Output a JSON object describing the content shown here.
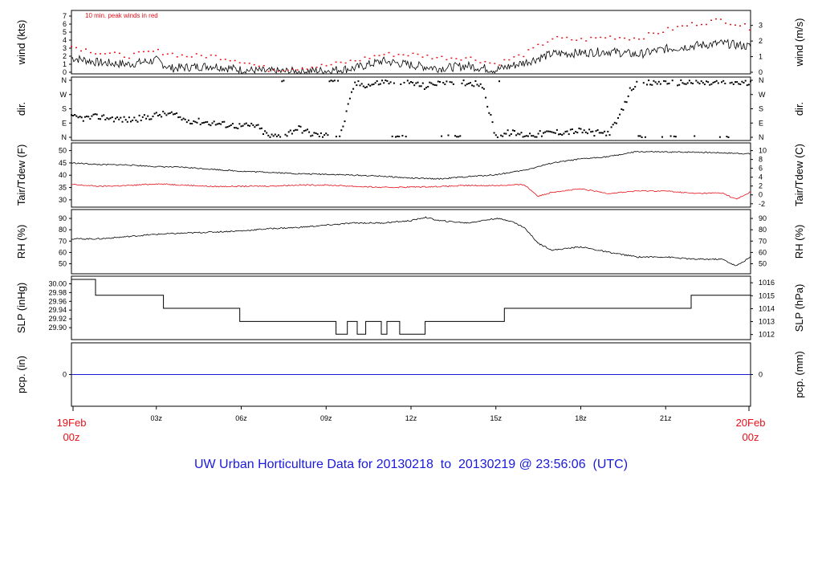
{
  "title": "UW Urban Horticulture Data for 20130218  to  20130219 @ 23:56:06  (UTC)",
  "colors": {
    "primary": "#000000",
    "red": "#e8101a",
    "blue": "#1a1adc"
  },
  "chart_data": {
    "type": "line",
    "x_axis": {
      "unit": "hour",
      "range": [
        0,
        24
      ],
      "ticks": [
        {
          "hour": 3,
          "label": "03z"
        },
        {
          "hour": 6,
          "label": "06z"
        },
        {
          "hour": 9,
          "label": "09z"
        },
        {
          "hour": 12,
          "label": "12z"
        },
        {
          "hour": 15,
          "label": "15z"
        },
        {
          "hour": 18,
          "label": "18z"
        },
        {
          "hour": 21,
          "label": "21z"
        }
      ],
      "start_label": [
        "19Feb",
        "00z"
      ],
      "end_label": [
        "20Feb",
        "00z"
      ]
    },
    "panels": [
      {
        "id": "wind",
        "left_label": "wind (kts)",
        "right_label": "wind (m/s)",
        "ylim": [
          0,
          7.5
        ],
        "left_ticks": [
          0,
          1,
          2,
          3,
          4,
          5,
          6,
          7
        ],
        "right_ticks": [
          {
            "v": 0,
            "label": "0"
          },
          {
            "v": 1.944,
            "label": "1"
          },
          {
            "v": 3.888,
            "label": "2"
          },
          {
            "v": 5.832,
            "label": "3"
          }
        ],
        "annotation": "10 min. peak winds in red",
        "series": [
          {
            "color": "#000000",
            "style": "line",
            "hours": [
              0,
              1,
              2,
              3,
              3.5,
              4,
              5,
              6,
              7,
              8,
              9,
              10,
              11,
              12,
              13,
              14,
              15,
              16,
              17,
              18,
              19,
              20,
              21,
              22,
              23,
              24
            ],
            "values": [
              1.8,
              1.2,
              1.0,
              1.5,
              0.5,
              0.6,
              0.8,
              0.3,
              0.1,
              0.1,
              0.2,
              0.5,
              1.4,
              0.9,
              0.5,
              0.8,
              0.3,
              1.2,
              2.3,
              2.4,
              2.6,
              2.2,
              2.9,
              3.3,
              3.6,
              3.2
            ]
          },
          {
            "color": "#e8101a",
            "style": "dots",
            "hours": [
              0,
              1,
              2,
              3,
              4,
              5,
              6,
              7,
              8,
              9,
              10,
              11,
              12,
              13,
              14,
              15,
              16,
              17,
              18,
              19,
              20,
              21,
              22,
              23,
              24
            ],
            "values": [
              3.2,
              2.4,
              2.0,
              2.6,
              2.0,
              2.0,
              1.4,
              0.3,
              0.5,
              0.8,
              1.4,
              2.2,
              2.2,
              1.8,
              1.8,
              1.0,
              2.2,
              4.2,
              4.0,
              4.4,
              4.2,
              5.2,
              6.0,
              6.5,
              5.5
            ]
          }
        ]
      },
      {
        "id": "dir",
        "left_label": "dir.",
        "right_label": "dir.",
        "ylim": [
          0,
          360
        ],
        "left_ticks": [
          {
            "v": 0,
            "label": "N"
          },
          {
            "v": 90,
            "label": "E"
          },
          {
            "v": 180,
            "label": "S"
          },
          {
            "v": 270,
            "label": "W"
          },
          {
            "v": 360,
            "label": "N"
          }
        ],
        "right_ticks": [
          {
            "v": 0,
            "label": "N"
          },
          {
            "v": 90,
            "label": "E"
          },
          {
            "v": 180,
            "label": "S"
          },
          {
            "v": 270,
            "label": "W"
          },
          {
            "v": 360,
            "label": "N"
          }
        ],
        "series": [
          {
            "color": "#000000",
            "style": "dots",
            "hours": [
              0,
              0.5,
              1,
              1.5,
              2,
              2.5,
              3,
              3.5,
              4,
              4.5,
              5,
              5.5,
              6,
              6.5,
              7,
              7.5,
              8,
              8.5,
              9,
              9.5,
              10,
              10.5,
              11,
              11.5,
              12,
              12.5,
              13,
              13.5,
              14,
              14.5,
              15,
              15.5,
              16,
              16.5,
              17,
              17.5,
              18,
              18.5,
              19,
              19.25,
              19.5,
              19.75,
              20,
              20.5,
              21,
              21.5,
              22,
              22.5,
              23,
              23.5,
              24
            ],
            "values": [
              125,
              120,
              130,
              118,
              110,
              120,
              140,
              150,
              110,
              100,
              90,
              80,
              70,
              75,
              5,
              10,
              60,
              20,
              10,
              5,
              340,
              330,
              350,
              355,
              345,
              320,
              350,
              355,
              345,
              340,
              5,
              30,
              15,
              20,
              30,
              35,
              40,
              25,
              30,
              90,
              180,
              300,
              350,
              340,
              355,
              345,
              350,
              340,
              350,
              345,
              340
            ]
          }
        ]
      },
      {
        "id": "temp",
        "left_label": "Tair/Tdew (F)",
        "right_label": "Tair/Tdew (C)",
        "ylim": [
          28,
          51.5
        ],
        "left_ticks": [
          30,
          35,
          40,
          45,
          50
        ],
        "right_ticks": [
          {
            "v": 28.4,
            "label": "-2"
          },
          {
            "v": 32,
            "label": "0"
          },
          {
            "v": 35.6,
            "label": "2"
          },
          {
            "v": 39.2,
            "label": "4"
          },
          {
            "v": 42.8,
            "label": "6"
          },
          {
            "v": 46.4,
            "label": "8"
          },
          {
            "v": 50,
            "label": "10"
          }
        ],
        "series": [
          {
            "color": "#000000",
            "style": "line",
            "hours": [
              0,
              1,
              2,
              3,
              4,
              5,
              6,
              7,
              8,
              9,
              10,
              11,
              12,
              13,
              14,
              15,
              16,
              17,
              18,
              19,
              20,
              21,
              22,
              23,
              24
            ],
            "values": [
              45,
              44.3,
              44.2,
              43.5,
              43.2,
              42.4,
              41.6,
              41.2,
              40.6,
              40.4,
              40,
              39.6,
              38.8,
              38.5,
              39.4,
              40.2,
              42,
              45,
              46.6,
              47.6,
              49.6,
              49.4,
              49.4,
              49.1,
              48.7
            ]
          },
          {
            "color": "#e8101a",
            "style": "line",
            "hours": [
              0,
              1,
              2,
              3,
              4,
              5,
              6,
              7,
              8,
              9,
              10,
              11,
              12,
              13,
              14,
              15,
              16,
              16.5,
              17,
              18,
              19,
              20,
              21,
              22,
              23,
              23.5,
              24
            ],
            "values": [
              36.2,
              35.5,
              35.8,
              36.5,
              36,
              35.4,
              35.5,
              35.6,
              36,
              36,
              35.5,
              35,
              35.2,
              35.4,
              35.8,
              35.8,
              36.2,
              31.4,
              33.2,
              34.4,
              32.6,
              33.6,
              33.6,
              32.6,
              32.8,
              30.2,
              33.2
            ]
          }
        ]
      },
      {
        "id": "rh",
        "left_label": "RH (%)",
        "right_label": "RH (%)",
        "ylim": [
          44,
          95
        ],
        "left_ticks": [
          50,
          60,
          70,
          80,
          90
        ],
        "right_ticks": [
          {
            "v": 50,
            "label": "50"
          },
          {
            "v": 60,
            "label": "60"
          },
          {
            "v": 70,
            "label": "70"
          },
          {
            "v": 80,
            "label": "80"
          },
          {
            "v": 90,
            "label": "90"
          }
        ],
        "series": [
          {
            "color": "#000000",
            "style": "line",
            "hours": [
              0,
              1,
              2,
              3,
              4,
              5,
              6,
              7,
              8,
              9,
              10,
              11,
              12,
              12.5,
              13,
              14,
              15,
              15.5,
              16,
              16.5,
              17,
              18,
              19,
              20,
              21,
              22,
              23,
              23.5,
              24
            ],
            "values": [
              72,
              72,
              74,
              76,
              77,
              78,
              79,
              81,
              82,
              84,
              86,
              86,
              88,
              91,
              88,
              86,
              90,
              88,
              82,
              68,
              62,
              65,
              60,
              56,
              56,
              54,
              54,
              48,
              56
            ]
          }
        ]
      },
      {
        "id": "slp",
        "left_label": "SLP (inHg)",
        "right_label": "SLP (hPa)",
        "ylim": [
          29.88,
          30.01
        ],
        "left_ticks": [
          {
            "v": 29.9,
            "label": "29.90"
          },
          {
            "v": 29.92,
            "label": "29.92"
          },
          {
            "v": 29.94,
            "label": "29.94"
          },
          {
            "v": 29.96,
            "label": "29.96"
          },
          {
            "v": 29.98,
            "label": "29.98"
          },
          {
            "v": 30.0,
            "label": "30.00"
          }
        ],
        "right_ticks": [
          {
            "v": 29.8843,
            "label": "1012"
          },
          {
            "v": 29.9138,
            "label": "1013"
          },
          {
            "v": 29.9433,
            "label": "1014"
          },
          {
            "v": 29.9729,
            "label": "1015"
          },
          {
            "v": 30.0024,
            "label": "1016"
          }
        ],
        "series": [
          {
            "color": "#000000",
            "style": "step",
            "hours": [
              0,
              0.85,
              3.25,
              5.95,
              9.35,
              9.75,
              10.1,
              10.4,
              10.95,
              11.15,
              11.6,
              12.5,
              15.3,
              21.9,
              24
            ],
            "values": [
              30.01,
              29.974,
              29.944,
              29.914,
              29.885,
              29.914,
              29.885,
              29.914,
              29.885,
              29.914,
              29.885,
              29.914,
              29.944,
              29.974,
              29.974
            ]
          }
        ]
      },
      {
        "id": "pcp",
        "left_label": "pcp. (in)",
        "right_label": "pcp. (mm)",
        "ylim": [
          -1,
          1
        ],
        "left_ticks": [
          {
            "v": 0,
            "label": "0"
          }
        ],
        "right_ticks": [
          {
            "v": 0,
            "label": "0"
          }
        ],
        "series": [
          {
            "color": "#1a1adc",
            "style": "line",
            "hours": [
              0,
              24
            ],
            "values": [
              0,
              0
            ]
          }
        ]
      }
    ]
  }
}
